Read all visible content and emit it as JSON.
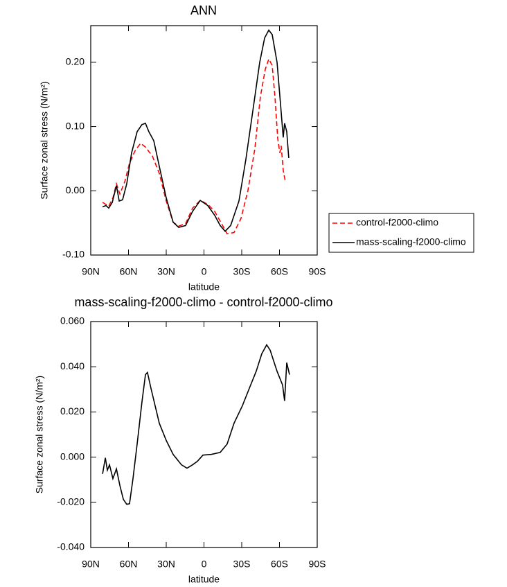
{
  "chart_data": [
    {
      "type": "line",
      "title": "ANN",
      "xlabel": "latitude",
      "ylabel": "Surface zonal stress (N/m²)",
      "xlim": [
        90,
        -90
      ],
      "xticks": [
        {
          "value": 90,
          "label": "90N"
        },
        {
          "value": 60,
          "label": "60N"
        },
        {
          "value": 30,
          "label": "30N"
        },
        0,
        {
          "value": -30,
          "label": "30S"
        },
        {
          "value": -60,
          "label": "60S"
        },
        {
          "value": -90,
          "label": "90S"
        }
      ],
      "ylim": [
        -0.1,
        0.257
      ],
      "yticks": [
        {
          "value": -0.1,
          "label": "-0.10"
        },
        {
          "value": 0,
          "label": "0.00"
        },
        {
          "value": 0.1,
          "label": "0.10"
        },
        {
          "value": 0.2,
          "label": "0.20"
        }
      ],
      "legend": "right",
      "series": [
        {
          "name": "control-f2000-climo",
          "color": "#ff0000",
          "line_style": "dashed",
          "x": [
            80.6,
            75.7,
            72.4,
            69.6,
            66.8,
            63.0,
            59.2,
            54.8,
            50.4,
            46.5,
            41.0,
            35.5,
            30.0,
            24.5,
            20.1,
            14.6,
            9.1,
            3.0,
            -3.0,
            -8.5,
            -14.0,
            -18.4,
            -23.9,
            -29.4,
            -34.9,
            -40.4,
            -44.8,
            -48.7,
            -51.5,
            -54.2,
            -56.4,
            -58.6,
            -60.3,
            -61.4,
            -63.0,
            -64.7
          ],
          "values": [
            -0.018,
            -0.024,
            -0.011,
            0.011,
            -0.005,
            0.014,
            0.043,
            0.062,
            0.074,
            0.068,
            0.054,
            0.027,
            -0.016,
            -0.049,
            -0.055,
            -0.051,
            -0.027,
            -0.015,
            -0.021,
            -0.032,
            -0.051,
            -0.067,
            -0.065,
            -0.043,
            0.0,
            0.065,
            0.146,
            0.189,
            0.205,
            0.195,
            0.146,
            0.081,
            0.059,
            0.07,
            0.032,
            0.014
          ]
        },
        {
          "name": "mass-scaling-f2000-climo",
          "color": "#000000",
          "line_style": "solid",
          "x": [
            80.6,
            77.9,
            75.7,
            72.9,
            69.6,
            67.4,
            64.7,
            61.4,
            57.5,
            53.1,
            49.3,
            46.5,
            43.8,
            39.9,
            35.5,
            30.0,
            24.5,
            20.1,
            14.6,
            9.1,
            3.0,
            -3.0,
            -8.5,
            -12.9,
            -16.8,
            -21.2,
            -27.8,
            -33.3,
            -38.8,
            -44.3,
            -48.2,
            -51.5,
            -54.2,
            -58.1,
            -60.8,
            -63.0,
            -64.1,
            -65.8,
            -67.4
          ],
          "values": [
            -0.025,
            -0.023,
            -0.027,
            -0.018,
            0.008,
            -0.016,
            -0.014,
            0.011,
            0.059,
            0.092,
            0.103,
            0.105,
            0.092,
            0.078,
            0.038,
            -0.011,
            -0.049,
            -0.057,
            -0.054,
            -0.032,
            -0.015,
            -0.023,
            -0.038,
            -0.054,
            -0.063,
            -0.054,
            -0.016,
            0.049,
            0.124,
            0.2,
            0.238,
            0.25,
            0.243,
            0.2,
            0.135,
            0.083,
            0.105,
            0.092,
            0.051
          ]
        }
      ]
    },
    {
      "type": "line",
      "title": "mass-scaling-f2000-climo - control-f2000-climo",
      "xlabel": "latitude",
      "ylabel": "Surface zonal stress (N/m²)",
      "xlim": [
        90,
        -90
      ],
      "xticks": [
        {
          "value": 90,
          "label": "90N"
        },
        {
          "value": 60,
          "label": "60N"
        },
        {
          "value": 30,
          "label": "30N"
        },
        0,
        {
          "value": -30,
          "label": "30S"
        },
        {
          "value": -60,
          "label": "60S"
        },
        {
          "value": -90,
          "label": "90S"
        }
      ],
      "ylim": [
        -0.04,
        0.06
      ],
      "yticks": [
        {
          "value": -0.04,
          "label": "-0.040"
        },
        {
          "value": -0.02,
          "label": "-0.020"
        },
        {
          "value": 0,
          "label": "0.000"
        },
        {
          "value": 0.02,
          "label": "0.020"
        },
        {
          "value": 0.04,
          "label": "0.040"
        },
        {
          "value": 0.06,
          "label": "0.060"
        }
      ],
      "series": [
        {
          "color": "#000000",
          "line_style": "solid",
          "x": [
            80.6,
            78.4,
            76.8,
            75.1,
            72.4,
            69.6,
            66.8,
            64.1,
            61.4,
            59.2,
            56.4,
            53.1,
            49.3,
            46.5,
            44.9,
            42.1,
            35.5,
            30.0,
            24.5,
            17.9,
            13.5,
            9.1,
            5.2,
            0.8,
            -5.8,
            -12.9,
            -18.4,
            -23.9,
            -30.5,
            -36.0,
            -41.5,
            -45.9,
            -49.8,
            -52.6,
            -58.1,
            -62.5,
            -64.1,
            -65.8,
            -68.0
          ],
          "values": [
            -0.0074,
            -0.0003,
            -0.0058,
            -0.0034,
            -0.0095,
            -0.0052,
            -0.0126,
            -0.0187,
            -0.0209,
            -0.0206,
            -0.0095,
            0.0058,
            0.0243,
            0.0365,
            0.0375,
            0.0304,
            0.015,
            0.0074,
            0.0012,
            -0.0034,
            -0.0049,
            -0.0034,
            -0.0018,
            0.0009,
            0.0012,
            0.0021,
            0.0058,
            0.015,
            0.0227,
            0.0304,
            0.038,
            0.0457,
            0.0497,
            0.0473,
            0.038,
            0.0319,
            0.0249,
            0.0418,
            0.0365
          ]
        }
      ]
    }
  ]
}
